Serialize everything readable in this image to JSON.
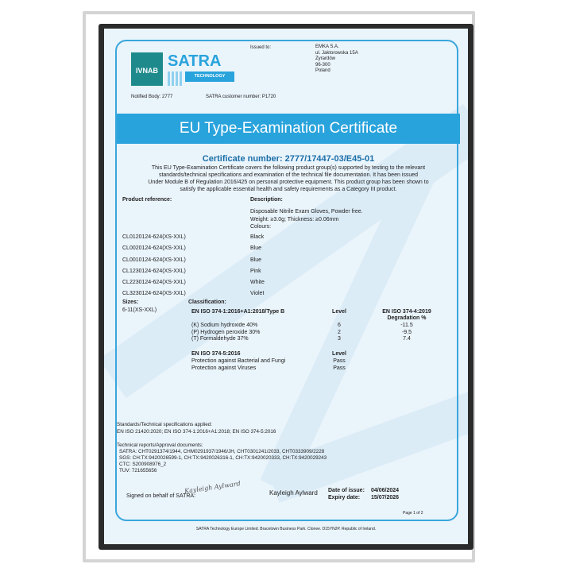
{
  "logos": {
    "ivnab": "IVNAB",
    "satra": "SATRA",
    "technology": "TECHNOLOGY"
  },
  "header": {
    "issued_to_label": "Issued to:",
    "issued_to": [
      "EMKA S.A.",
      "ul. Jaktorowska 15A",
      "Zyrardów",
      "96-300",
      "Poland"
    ],
    "notified_body": "Notified Body: 2777",
    "customer_number": "SATRA customer number: P1720"
  },
  "title": "EU Type-Examination Certificate",
  "certificate_number": "Certificate number: 2777/17447-03/E45-01",
  "intro": [
    "This EU Type-Examination Certificate covers the following product group(s) supported by testing to the relevant",
    "standards/technical specifications and examination of the technical file documentation. It has been issued",
    "Under Module B of Regulation 2016/425 on personal protective equipment. This product group has been shown to",
    "satisfy the applicable essential health and safety requirements as a  Category III product."
  ],
  "products": {
    "ref_header": "Product reference:",
    "desc_header": "Description:",
    "description": [
      "Disposable Nitrile Exam Gloves, Powder free.",
      "Weight: ≥3.0g; Thickness: ≥0.06mm",
      "Colours:"
    ],
    "rows": [
      {
        "ref": "CL0120124-624(XS-XXL)",
        "colour": "Black"
      },
      {
        "ref": "CL0020124-624(XS-XXL)",
        "colour": "Blue"
      },
      {
        "ref": "CL0010124-624(XS-XXL)",
        "colour": "Blue"
      },
      {
        "ref": "CL1230124-624(XS-XXL)",
        "colour": "Pink"
      },
      {
        "ref": "CL2230124-624(XS-XXL)",
        "colour": "White"
      },
      {
        "ref": "CL3230124-624(XS-XXL)",
        "colour": "Violet"
      }
    ]
  },
  "sizes": {
    "label": "Sizes:",
    "value": "6-11(XS-XXL)"
  },
  "classification": {
    "label": "Classification:",
    "std1": "EN ISO 374-1:2016+A1:2018/Type B",
    "level_label": "Level",
    "std4": "EN ISO 374-4:2019",
    "degradation_label": "Degradation %",
    "chemicals": [
      {
        "name": "(K) Sodium hydroxide 40%",
        "level": "6",
        "degradation": "-11.5"
      },
      {
        "name": "(P) Hydrogen peroxide 30%",
        "level": "2",
        "degradation": "-9.5"
      },
      {
        "name": "(T) Formaldehyde 37%",
        "level": "3",
        "degradation": "7.4"
      }
    ],
    "std5": "EN ISO 374-5:2016",
    "level5_label": "Level",
    "bio": [
      {
        "name": "Protection against Bacterial and Fungi",
        "level": "Pass"
      },
      {
        "name": "Protection against Viruses",
        "level": "Pass"
      }
    ]
  },
  "standards": {
    "label": "Standards/Technical specifications applied:",
    "value": "EN ISO 21420:2020; EN ISO 374-1:2016+A1:2018; EN ISO 374-5:2016"
  },
  "reports": {
    "label": "Technical reports/Approval documents:",
    "lines": [
      "SATRA: CHT0291374/1944, CHM0291937/1946/JH, CHT0301241/2033, CHT0333909/2228",
      "SGS: CH:TX:9420026599-1, CH:TX:9420026316-1, CH:TX:9420020333, CH:TX:9420029243",
      "CTC: S200908976_2",
      "TUV: 721655656"
    ]
  },
  "signature": {
    "label": "Signed on behalf of SATRA:",
    "signature_text": "Kayleigh Aylward",
    "name": "Kayleigh Aylward"
  },
  "dates": {
    "issue_label": "Date of issue:",
    "issue": "04/06/2024",
    "expiry_label": "Expiry date:",
    "expiry": "15/07/2026"
  },
  "page": "Page 1 of 2",
  "footer": "SATRA Technology Europe Limited. Bracetown Business Park. Clonee. D15YN2P. Republic of Ireland.",
  "colors": {
    "accent": "#29a3dc",
    "cert_number": "#1b6fa8",
    "frame": "#2b2b2b"
  }
}
